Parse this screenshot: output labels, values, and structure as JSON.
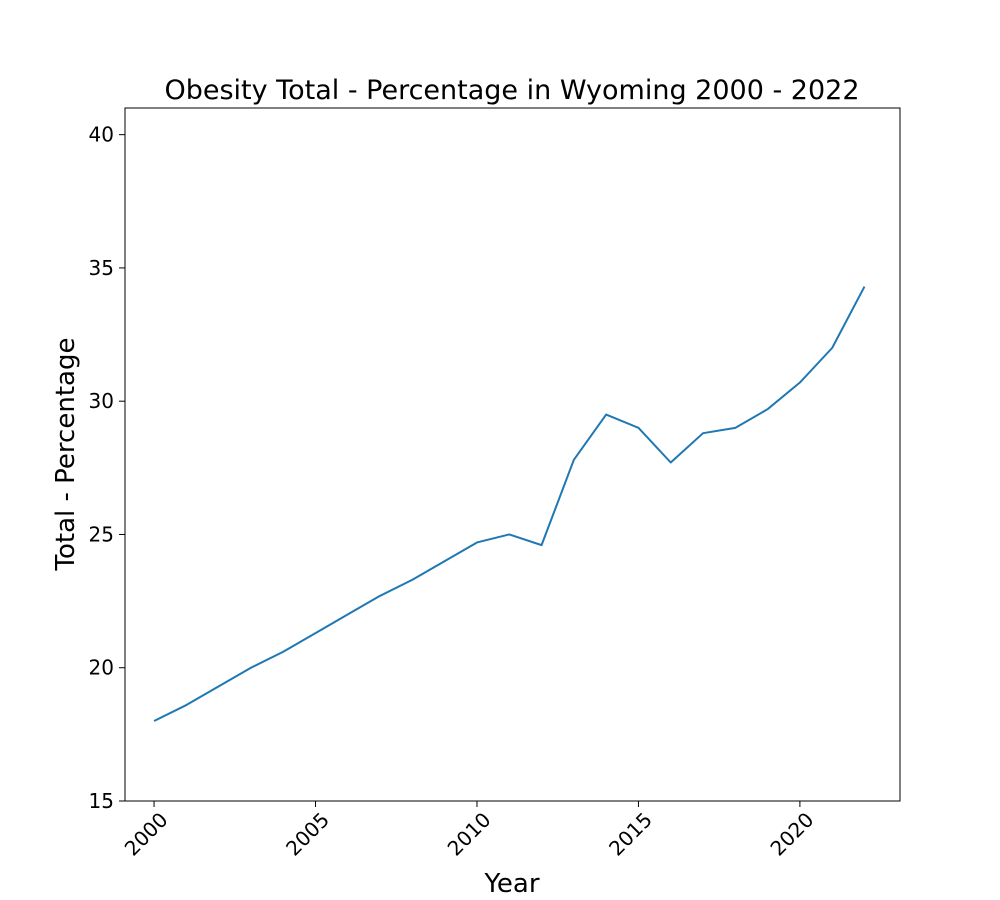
{
  "chart_data": {
    "type": "line",
    "title": "Obesity Total - Percentage in Wyoming 2000 - 2022",
    "xlabel": "Year",
    "ylabel": "Total - Percentage",
    "xlim": [
      1999.1,
      2023.1
    ],
    "ylim": [
      15,
      41
    ],
    "x_ticks": [
      2000,
      2005,
      2010,
      2015,
      2020
    ],
    "y_ticks": [
      15,
      20,
      25,
      30,
      35,
      40
    ],
    "grid": false,
    "series": [
      {
        "color": "#1f77b4",
        "x": [
          2000,
          2001,
          2002,
          2003,
          2004,
          2005,
          2006,
          2007,
          2008,
          2009,
          2010,
          2011,
          2012,
          2013,
          2014,
          2015,
          2016,
          2017,
          2018,
          2019,
          2020,
          2021,
          2022
        ],
        "values": [
          18.0,
          18.6,
          19.3,
          20.0,
          20.6,
          21.3,
          22.0,
          22.7,
          23.3,
          24.0,
          24.7,
          25.0,
          24.6,
          27.8,
          29.5,
          29.0,
          27.7,
          28.8,
          29.0,
          29.7,
          30.7,
          32.0,
          34.3
        ]
      }
    ]
  }
}
